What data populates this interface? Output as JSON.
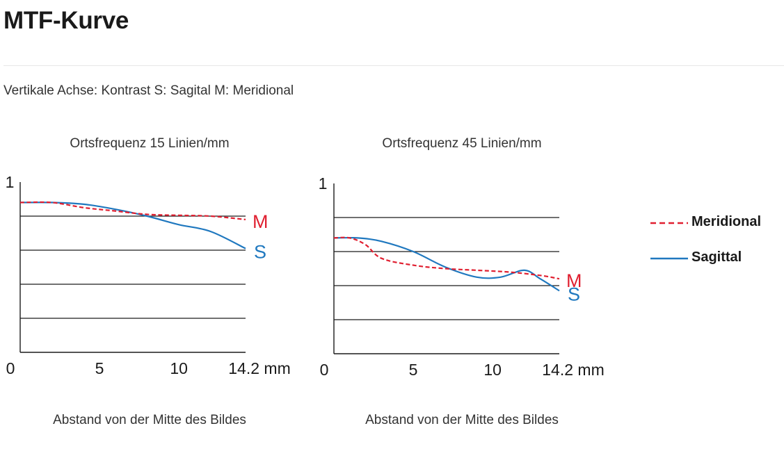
{
  "page": {
    "title": "MTF-Kurve",
    "axis_note": "Vertikale Achse: Kontrast S: Sagital M: Meridional"
  },
  "legend": {
    "items": [
      {
        "key": "M",
        "label": "Meridional",
        "color": "#e01f30",
        "style": "dashed"
      },
      {
        "key": "S",
        "label": "Sagittal",
        "color": "#1f78bf",
        "style": "solid"
      }
    ]
  },
  "chart_data": [
    {
      "type": "line",
      "title": "Ortsfrequenz 15 Linien/mm",
      "xlabel": "Abstand von der Mitte des Bildes",
      "ylabel": "",
      "xlim": [
        0,
        14.2
      ],
      "ylim": [
        0,
        1
      ],
      "x_ticks": [
        "0",
        "5",
        "10",
        "14.2 mm"
      ],
      "y_ticks": [
        "1"
      ],
      "grid_y": [
        0.2,
        0.4,
        0.6,
        0.8
      ],
      "series": [
        {
          "name": "M",
          "color": "#e01f30",
          "style": "dashed",
          "x": [
            0,
            2,
            4,
            6,
            8,
            10,
            12,
            14.2
          ],
          "y": [
            0.88,
            0.88,
            0.85,
            0.83,
            0.81,
            0.805,
            0.8,
            0.78
          ]
        },
        {
          "name": "S",
          "color": "#1f78bf",
          "style": "solid",
          "x": [
            0,
            2,
            4,
            6,
            8,
            10,
            12,
            14.2
          ],
          "y": [
            0.88,
            0.88,
            0.87,
            0.84,
            0.8,
            0.75,
            0.71,
            0.61
          ]
        }
      ]
    },
    {
      "type": "line",
      "title": "Ortsfrequenz 45 Linien/mm",
      "xlabel": "Abstand von der Mitte des Bildes",
      "ylabel": "",
      "xlim": [
        0,
        14.2
      ],
      "ylim": [
        0,
        1
      ],
      "x_ticks": [
        "0",
        "5",
        "10",
        "14.2 mm"
      ],
      "y_ticks": [
        "1"
      ],
      "grid_y": [
        0.2,
        0.4,
        0.6,
        0.8
      ],
      "series": [
        {
          "name": "M",
          "color": "#e01f30",
          "style": "dashed",
          "x": [
            0,
            1,
            2,
            3,
            5,
            7,
            9,
            11,
            13,
            14.2
          ],
          "y": [
            0.68,
            0.68,
            0.64,
            0.56,
            0.52,
            0.5,
            0.49,
            0.48,
            0.46,
            0.44
          ]
        },
        {
          "name": "S",
          "color": "#1f78bf",
          "style": "solid",
          "x": [
            0,
            1.5,
            3,
            5,
            7,
            9,
            10.5,
            12,
            13,
            14.2
          ],
          "y": [
            0.68,
            0.68,
            0.66,
            0.6,
            0.51,
            0.45,
            0.45,
            0.49,
            0.44,
            0.37
          ]
        }
      ]
    }
  ]
}
